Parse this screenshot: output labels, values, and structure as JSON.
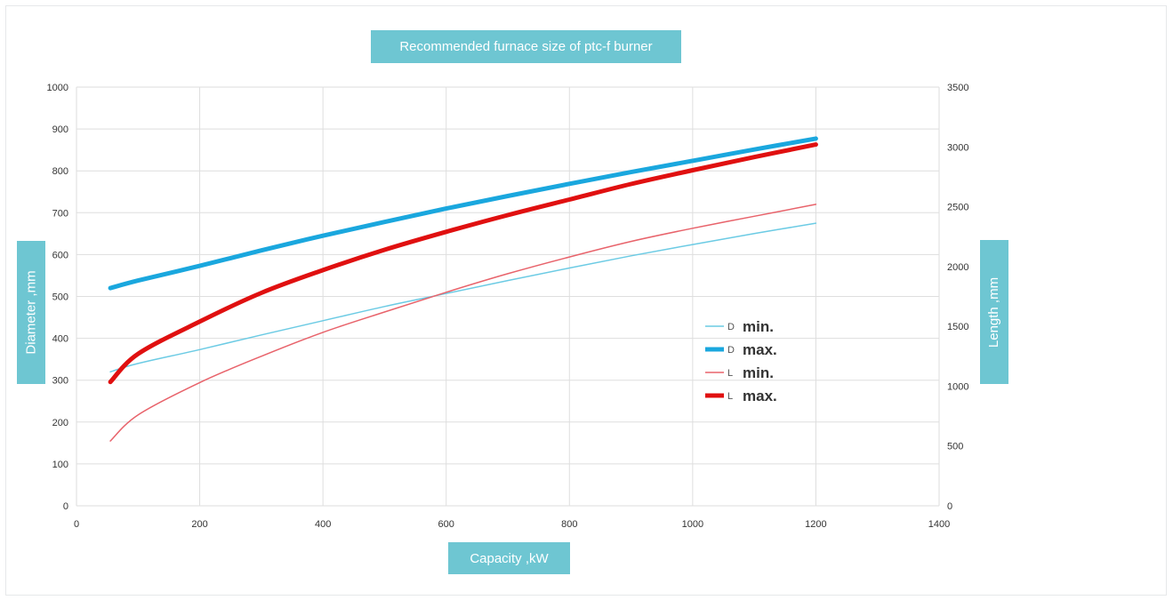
{
  "chart_data": {
    "type": "line",
    "title": "Recommended furnace size of ptc-f burner",
    "xlabel": "Capacity ,kW",
    "ylabel": "Diameter ,mm",
    "y2label": "Length ,mm",
    "xlim": [
      0,
      1400
    ],
    "ylim": [
      0,
      1000
    ],
    "y2lim": [
      0,
      3500
    ],
    "xticks": [
      0,
      200,
      400,
      600,
      800,
      1000,
      1200,
      1400
    ],
    "yticks": [
      0,
      100,
      200,
      300,
      400,
      500,
      600,
      700,
      800,
      900,
      1000
    ],
    "y2ticks": [
      0,
      500,
      1000,
      1500,
      2000,
      2500,
      3000,
      3500
    ],
    "grid": true,
    "legend_position": "right",
    "series": [
      {
        "name": "D min.",
        "prefix": "D",
        "label": "min.",
        "axis": "left",
        "color": "#6ccbe4",
        "width": 1.5,
        "x": [
          55,
          100,
          200,
          300,
          400,
          500,
          600,
          700,
          800,
          900,
          1000,
          1100,
          1200
        ],
        "y": [
          320,
          340,
          373,
          408,
          442,
          476,
          507,
          538,
          568,
          597,
          624,
          650,
          675
        ]
      },
      {
        "name": "D max.",
        "prefix": "D",
        "label": "max.",
        "axis": "left",
        "color": "#1aa7de",
        "width": 5,
        "x": [
          55,
          100,
          200,
          300,
          400,
          500,
          600,
          700,
          800,
          900,
          1000,
          1100,
          1200
        ],
        "y": [
          520,
          538,
          573,
          610,
          645,
          678,
          710,
          740,
          769,
          797,
          824,
          851,
          877
        ]
      },
      {
        "name": "L min.",
        "prefix": "L",
        "label": "min.",
        "axis": "right",
        "color": "#e8636b",
        "width": 1.5,
        "x": [
          55,
          100,
          200,
          300,
          400,
          500,
          600,
          700,
          800,
          900,
          1000,
          1100,
          1200
        ],
        "y": [
          542,
          760,
          1030,
          1250,
          1450,
          1620,
          1785,
          1940,
          2080,
          2210,
          2320,
          2420,
          2520
        ]
      },
      {
        "name": "L max.",
        "prefix": "L",
        "label": "max.",
        "axis": "right",
        "color": "#e01010",
        "width": 5,
        "x": [
          55,
          100,
          200,
          300,
          400,
          500,
          600,
          700,
          800,
          900,
          1000,
          1100,
          1200
        ],
        "y": [
          1035,
          1270,
          1540,
          1780,
          1970,
          2140,
          2290,
          2430,
          2560,
          2690,
          2805,
          2915,
          3020
        ]
      }
    ]
  }
}
